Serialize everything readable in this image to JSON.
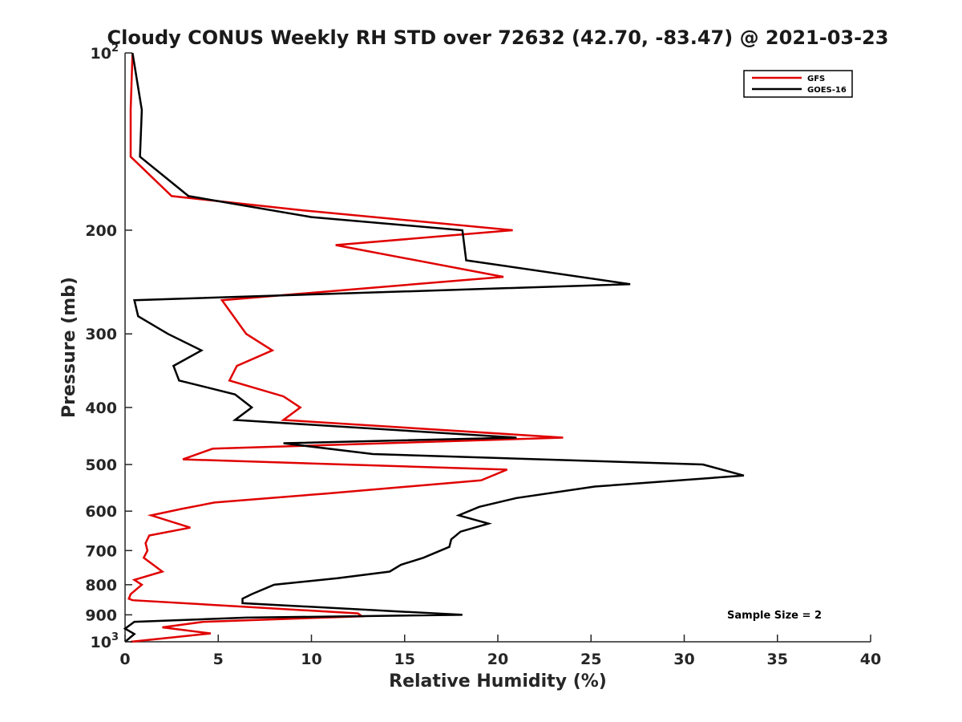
{
  "chart_data": {
    "type": "line",
    "title": "Cloudy CONUS Weekly RH STD over 72632 (42.70, -83.47) @ 2021-03-23",
    "xlabel": "Relative Humidity (%)",
    "ylabel": "Pressure (mb)",
    "xlim": [
      0,
      40
    ],
    "ylim": [
      100,
      1000
    ],
    "yscale": "log",
    "y_reversed": true,
    "x_ticks": [
      0,
      5,
      10,
      15,
      20,
      25,
      30,
      35,
      40
    ],
    "y_ticks": [
      {
        "value": 100,
        "base": "10",
        "exp": "2"
      },
      {
        "value": 200,
        "label": "200"
      },
      {
        "value": 300,
        "label": "300"
      },
      {
        "value": 400,
        "label": "400"
      },
      {
        "value": 500,
        "label": "500"
      },
      {
        "value": 600,
        "label": "600"
      },
      {
        "value": 700,
        "label": "700"
      },
      {
        "value": 800,
        "label": "800"
      },
      {
        "value": 900,
        "label": "900"
      },
      {
        "value": 1000,
        "base": "10",
        "exp": "3"
      }
    ],
    "grid": false,
    "legend_position": "top-right",
    "annotation": "Sample Size = 2",
    "series": [
      {
        "name": "GFS",
        "color": "#e00000",
        "points": [
          [
            0.4,
            100
          ],
          [
            0.3,
            125
          ],
          [
            0.3,
            150
          ],
          [
            2.5,
            175
          ],
          [
            9.5,
            185
          ],
          [
            20.8,
            200
          ],
          [
            11.3,
            212
          ],
          [
            20.3,
            240
          ],
          [
            5.2,
            263
          ],
          [
            6.5,
            300
          ],
          [
            7.9,
            320
          ],
          [
            6.0,
            340
          ],
          [
            5.6,
            360
          ],
          [
            8.5,
            383
          ],
          [
            9.4,
            400
          ],
          [
            8.5,
            420
          ],
          [
            23.5,
            450
          ],
          [
            4.7,
            470
          ],
          [
            3.1,
            490
          ],
          [
            20.5,
            510
          ],
          [
            19.1,
            532
          ],
          [
            10.8,
            560
          ],
          [
            4.8,
            580
          ],
          [
            3.0,
            595
          ],
          [
            1.4,
            610
          ],
          [
            3.5,
            640
          ],
          [
            1.3,
            660
          ],
          [
            1.1,
            680
          ],
          [
            1.2,
            700
          ],
          [
            1.0,
            720
          ],
          [
            2.0,
            760
          ],
          [
            0.5,
            785
          ],
          [
            0.9,
            800
          ],
          [
            0.3,
            830
          ],
          [
            0.2,
            845
          ],
          [
            0.4,
            850
          ],
          [
            12.5,
            895
          ],
          [
            12.7,
            905
          ],
          [
            4.2,
            925
          ],
          [
            2.0,
            945
          ],
          [
            4.6,
            968
          ],
          [
            0.3,
            1000
          ]
        ]
      },
      {
        "name": "GOES-16",
        "color": "#000000",
        "points": [
          [
            0.4,
            100
          ],
          [
            0.9,
            125
          ],
          [
            0.8,
            150
          ],
          [
            3.4,
            175
          ],
          [
            10.0,
            190
          ],
          [
            18.1,
            200
          ],
          [
            18.3,
            225
          ],
          [
            27.1,
            247
          ],
          [
            0.5,
            263
          ],
          [
            0.7,
            280
          ],
          [
            2.3,
            300
          ],
          [
            4.1,
            320
          ],
          [
            2.6,
            340
          ],
          [
            2.9,
            360
          ],
          [
            5.9,
            380
          ],
          [
            6.8,
            400
          ],
          [
            5.9,
            420
          ],
          [
            21.0,
            450
          ],
          [
            8.5,
            460
          ],
          [
            13.3,
            480
          ],
          [
            31.0,
            500
          ],
          [
            33.2,
            522
          ],
          [
            25.2,
            545
          ],
          [
            21.0,
            570
          ],
          [
            19.0,
            590
          ],
          [
            17.9,
            610
          ],
          [
            19.5,
            630
          ],
          [
            18.0,
            650
          ],
          [
            17.5,
            670
          ],
          [
            17.4,
            690
          ],
          [
            16.0,
            720
          ],
          [
            14.8,
            740
          ],
          [
            14.2,
            760
          ],
          [
            11.4,
            780
          ],
          [
            8.0,
            800
          ],
          [
            6.8,
            830
          ],
          [
            6.3,
            845
          ],
          [
            6.3,
            860
          ],
          [
            18.1,
            900
          ],
          [
            6.5,
            910
          ],
          [
            0.5,
            925
          ],
          [
            0.0,
            950
          ],
          [
            0.5,
            970
          ],
          [
            0.0,
            1000
          ]
        ]
      }
    ]
  }
}
